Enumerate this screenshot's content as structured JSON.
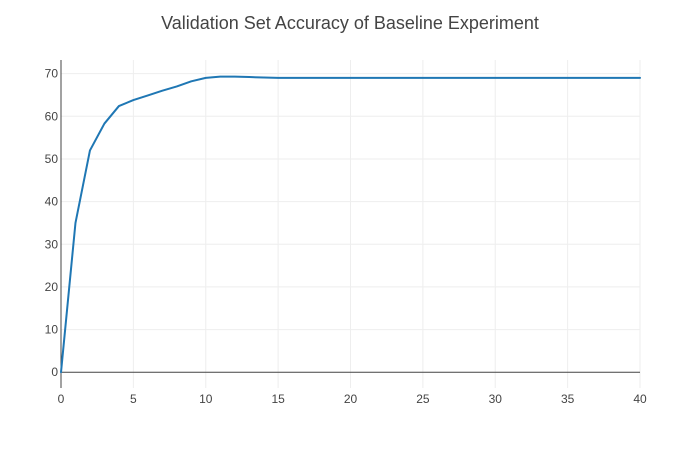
{
  "chart_data": {
    "type": "line",
    "title": "Validation Set Accuracy of Baseline Experiment",
    "xlabel": "",
    "ylabel": "",
    "xlim": [
      0,
      40
    ],
    "ylim": [
      -3.7,
      73.2
    ],
    "x_ticks": [
      0,
      5,
      10,
      15,
      20,
      25,
      30,
      35,
      40
    ],
    "y_ticks": [
      0,
      10,
      20,
      30,
      40,
      50,
      60,
      70
    ],
    "grid": true,
    "legend": "none",
    "series": [
      {
        "color": "#1f77b4",
        "x": [
          0,
          1,
          2,
          3,
          4,
          5,
          6,
          7,
          8,
          9,
          10,
          11,
          12,
          13,
          14,
          15,
          16,
          17,
          18,
          19,
          20,
          21,
          22,
          23,
          24,
          25,
          26,
          27,
          28,
          29,
          30,
          31,
          32,
          33,
          34,
          35,
          36,
          37,
          38,
          39,
          40
        ],
        "y": [
          0,
          35,
          52,
          58.3,
          62.4,
          63.8,
          64.9,
          66.0,
          67.0,
          68.2,
          69.0,
          69.3,
          69.3,
          69.2,
          69.1,
          69.0,
          69.0,
          69.0,
          69.0,
          69.0,
          69.0,
          69.0,
          69.0,
          69.0,
          69.0,
          69.0,
          69.0,
          69.0,
          69.0,
          69.0,
          69.0,
          69.0,
          69.0,
          69.0,
          69.0,
          69.0,
          69.0,
          69.0,
          69.0,
          69.0,
          69.0
        ]
      }
    ]
  }
}
